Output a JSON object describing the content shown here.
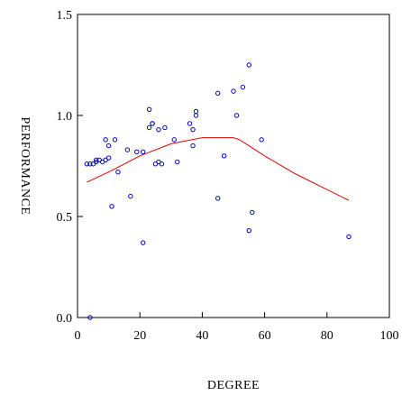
{
  "chart_data": {
    "type": "scatter",
    "title": "",
    "xlabel": "DEGREE",
    "ylabel": "PERFORMANCE",
    "xlim": [
      0,
      100
    ],
    "ylim": [
      0,
      1.5
    ],
    "xticks": [
      0,
      20,
      40,
      60,
      80,
      100
    ],
    "yticks": [
      0.0,
      0.5,
      1.0,
      1.5
    ],
    "ytick_labels": [
      "0.0",
      "0.5",
      "1.0",
      "1.5"
    ],
    "grid": false,
    "colors": {
      "points": "#0000cc",
      "fit_line": "#e00000",
      "axes": "#000000"
    },
    "series": [
      {
        "kind": "points",
        "x": [
          3,
          4,
          5,
          6,
          6,
          7,
          8,
          9,
          9,
          10,
          10,
          11,
          12,
          13,
          16,
          17,
          19,
          21,
          21,
          23,
          23,
          24,
          24,
          25,
          26,
          26,
          27,
          28,
          31,
          32,
          36,
          37,
          37,
          38,
          38,
          45,
          45,
          47,
          50,
          51,
          53,
          55,
          55,
          56,
          59,
          87
        ],
        "y": [
          0.76,
          0.76,
          0.76,
          0.77,
          0.78,
          0.78,
          0.77,
          0.88,
          0.78,
          0.85,
          0.79,
          0.55,
          0.88,
          0.72,
          0.83,
          0.6,
          0.82,
          0.37,
          0.82,
          1.03,
          0.94,
          0.96,
          0.96,
          0.76,
          0.77,
          0.93,
          0.76,
          0.94,
          0.88,
          0.77,
          0.96,
          0.93,
          0.85,
          1.0,
          1.02,
          1.11,
          0.59,
          0.8,
          1.12,
          1.0,
          1.14,
          1.25,
          0.43,
          0.52,
          0.88,
          0.4
        ]
      },
      {
        "kind": "fit_line",
        "x": [
          3,
          10,
          20,
          30,
          40,
          50,
          52,
          60,
          70,
          87
        ],
        "y": [
          0.67,
          0.72,
          0.8,
          0.86,
          0.89,
          0.89,
          0.88,
          0.8,
          0.71,
          0.58
        ]
      }
    ],
    "outlier": {
      "x": 4,
      "y": 0.0
    }
  }
}
